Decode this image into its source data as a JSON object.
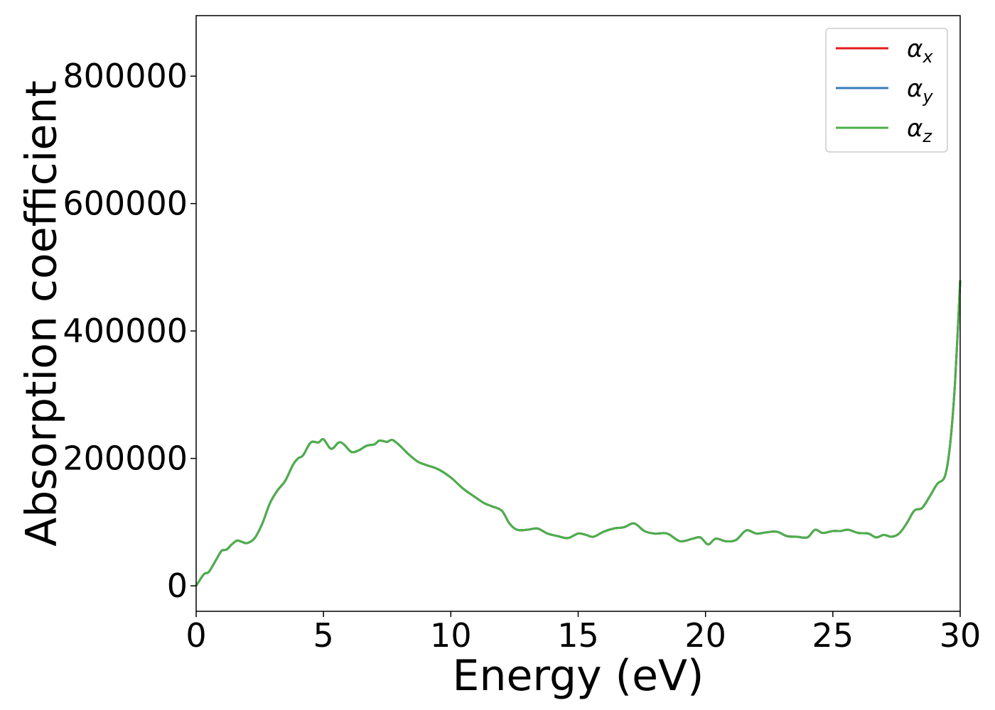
{
  "chart_data": {
    "type": "line",
    "xlabel": "Energy (eV)",
    "ylabel": "Absorption coefficient",
    "xlim": [
      0,
      30
    ],
    "ylim": [
      -40000,
      895000
    ],
    "xticks": [
      "0",
      "5",
      "10",
      "15",
      "20",
      "25",
      "30"
    ],
    "xtick_values": [
      0,
      5,
      10,
      15,
      20,
      25,
      30
    ],
    "yticks": [
      "0",
      "200000",
      "400000",
      "600000",
      "800000"
    ],
    "ytick_values": [
      0,
      200000,
      400000,
      600000,
      800000
    ],
    "grid": false,
    "legend_position": "top-right",
    "x": [
      0,
      0.3,
      0.5,
      0.8,
      1.0,
      1.2,
      1.4,
      1.6,
      1.8,
      2.0,
      2.3,
      2.6,
      2.9,
      3.2,
      3.5,
      3.8,
      4.0,
      4.2,
      4.5,
      4.8,
      5.0,
      5.3,
      5.6,
      5.8,
      6.1,
      6.4,
      6.7,
      7.0,
      7.2,
      7.5,
      7.7,
      8.0,
      8.3,
      8.7,
      9.0,
      9.5,
      10.0,
      10.5,
      11.0,
      11.3,
      11.6,
      12.0,
      12.3,
      12.6,
      13.0,
      13.4,
      13.8,
      14.2,
      14.6,
      15.0,
      15.3,
      15.6,
      16.0,
      16.4,
      16.8,
      17.2,
      17.6,
      18.0,
      18.5,
      19.0,
      19.5,
      19.8,
      20.1,
      20.4,
      20.8,
      21.2,
      21.6,
      22.0,
      22.4,
      22.8,
      23.2,
      23.6,
      24.0,
      24.3,
      24.6,
      25.0,
      25.3,
      25.6,
      26.0,
      26.4,
      26.7,
      27.0,
      27.3,
      27.6,
      27.9,
      28.2,
      28.5,
      28.8,
      29.1,
      29.4,
      29.6,
      29.8,
      30.0
    ],
    "series": [
      {
        "name": "αx",
        "color": "#e41a1c",
        "values": [
          0,
          18000,
          22000,
          42000,
          55000,
          57000,
          65000,
          71000,
          69000,
          67000,
          75000,
          98000,
          130000,
          150000,
          165000,
          190000,
          200000,
          205000,
          225000,
          225000,
          230000,
          215000,
          225000,
          222000,
          210000,
          213000,
          220000,
          222000,
          228000,
          226000,
          229000,
          220000,
          208000,
          195000,
          190000,
          183000,
          170000,
          152000,
          138000,
          130000,
          125000,
          118000,
          98000,
          88000,
          88000,
          90000,
          82000,
          78000,
          75000,
          82000,
          80000,
          77000,
          85000,
          90000,
          92000,
          98000,
          86000,
          82000,
          82000,
          70000,
          74000,
          76000,
          65000,
          74000,
          70000,
          72000,
          87000,
          82000,
          84000,
          85000,
          78000,
          77000,
          76000,
          88000,
          83000,
          86000,
          86000,
          88000,
          83000,
          82000,
          76000,
          80000,
          77000,
          82000,
          98000,
          118000,
          122000,
          140000,
          160000,
          172000,
          220000,
          320000,
          480000
        ]
      },
      {
        "name": "αy",
        "color": "#377eb8",
        "values": [
          0,
          18000,
          22000,
          42000,
          55000,
          57000,
          65000,
          71000,
          69000,
          67000,
          75000,
          98000,
          130000,
          150000,
          165000,
          190000,
          200000,
          205000,
          225000,
          225000,
          230000,
          215000,
          225000,
          222000,
          210000,
          213000,
          220000,
          222000,
          228000,
          226000,
          229000,
          220000,
          208000,
          195000,
          190000,
          183000,
          170000,
          152000,
          138000,
          130000,
          125000,
          118000,
          98000,
          88000,
          88000,
          90000,
          82000,
          78000,
          75000,
          82000,
          80000,
          77000,
          85000,
          90000,
          92000,
          98000,
          86000,
          82000,
          82000,
          70000,
          74000,
          76000,
          65000,
          74000,
          70000,
          72000,
          87000,
          82000,
          84000,
          85000,
          78000,
          77000,
          76000,
          88000,
          83000,
          86000,
          86000,
          88000,
          83000,
          82000,
          76000,
          80000,
          77000,
          82000,
          98000,
          118000,
          122000,
          140000,
          160000,
          172000,
          220000,
          320000,
          480000
        ]
      },
      {
        "name": "αz",
        "color": "#4daf4a",
        "values": [
          0,
          18000,
          22000,
          42000,
          55000,
          57000,
          65000,
          71000,
          69000,
          67000,
          75000,
          98000,
          130000,
          150000,
          165000,
          190000,
          200000,
          205000,
          225000,
          225000,
          230000,
          215000,
          225000,
          222000,
          210000,
          213000,
          220000,
          222000,
          228000,
          226000,
          229000,
          220000,
          208000,
          195000,
          190000,
          183000,
          170000,
          152000,
          138000,
          130000,
          125000,
          118000,
          98000,
          88000,
          88000,
          90000,
          82000,
          78000,
          75000,
          82000,
          80000,
          77000,
          85000,
          90000,
          92000,
          98000,
          86000,
          82000,
          82000,
          70000,
          74000,
          76000,
          65000,
          74000,
          70000,
          72000,
          87000,
          82000,
          84000,
          85000,
          78000,
          77000,
          76000,
          88000,
          83000,
          86000,
          86000,
          88000,
          83000,
          82000,
          76000,
          80000,
          77000,
          82000,
          98000,
          118000,
          122000,
          140000,
          160000,
          172000,
          220000,
          320000,
          480000
        ]
      }
    ],
    "legend": [
      {
        "symbol": "α",
        "sub": "x",
        "color": "#e41a1c"
      },
      {
        "symbol": "α",
        "sub": "y",
        "color": "#377eb8"
      },
      {
        "symbol": "α",
        "sub": "z",
        "color": "#4daf4a"
      }
    ]
  }
}
